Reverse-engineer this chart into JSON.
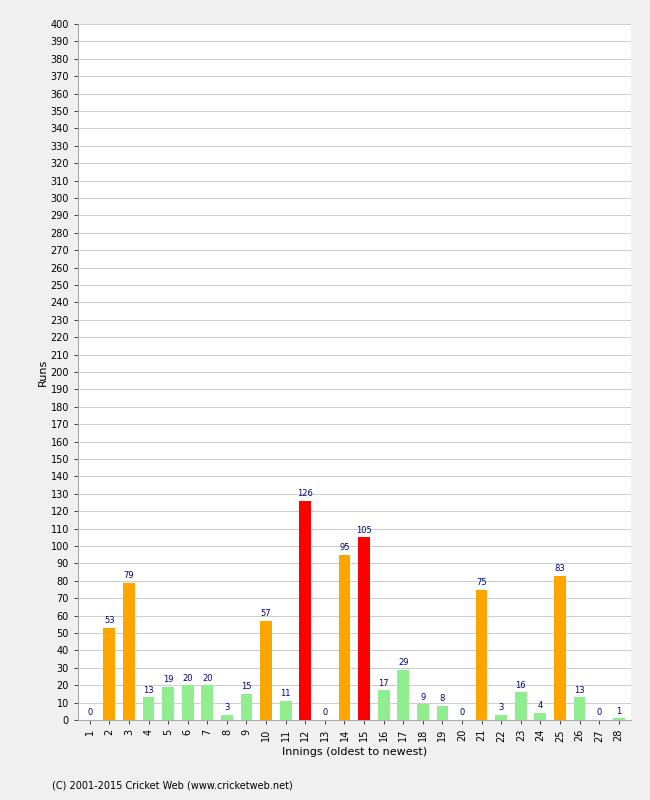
{
  "xlabel": "Innings (oldest to newest)",
  "ylabel": "Runs",
  "footer": "(C) 2001-2015 Cricket Web (www.cricketweb.net)",
  "ylim": [
    0,
    400
  ],
  "yticks": [
    0,
    10,
    20,
    30,
    40,
    50,
    60,
    70,
    80,
    90,
    100,
    110,
    120,
    130,
    140,
    150,
    160,
    170,
    180,
    190,
    200,
    210,
    220,
    230,
    240,
    250,
    260,
    270,
    280,
    290,
    300,
    310,
    320,
    330,
    340,
    350,
    360,
    370,
    380,
    390,
    400
  ],
  "innings": [
    1,
    2,
    3,
    4,
    5,
    6,
    7,
    8,
    9,
    10,
    11,
    12,
    13,
    14,
    15,
    16,
    17,
    18,
    19,
    20,
    21,
    22,
    23,
    24,
    25,
    26,
    27,
    28
  ],
  "values": [
    0,
    53,
    79,
    13,
    19,
    20,
    20,
    3,
    15,
    57,
    11,
    126,
    0,
    95,
    105,
    17,
    29,
    9,
    8,
    0,
    75,
    3,
    16,
    4,
    83,
    13,
    0,
    1
  ],
  "colors": [
    "#90EE90",
    "#FFA500",
    "#FFA500",
    "#90EE90",
    "#90EE90",
    "#90EE90",
    "#90EE90",
    "#90EE90",
    "#90EE90",
    "#FFA500",
    "#90EE90",
    "#FF0000",
    "#90EE90",
    "#FFA500",
    "#FF0000",
    "#90EE90",
    "#90EE90",
    "#90EE90",
    "#90EE90",
    "#90EE90",
    "#FFA500",
    "#90EE90",
    "#90EE90",
    "#90EE90",
    "#FFA500",
    "#90EE90",
    "#90EE90",
    "#90EE90"
  ],
  "label_color": "#00008B",
  "plot_bg_color": "#FFFFFF",
  "fig_bg_color": "#F0F0F0",
  "grid_color": "#CCCCCC",
  "bar_width": 0.6,
  "label_fontsize": 6,
  "tick_fontsize": 7,
  "axis_label_fontsize": 8,
  "footer_fontsize": 7
}
